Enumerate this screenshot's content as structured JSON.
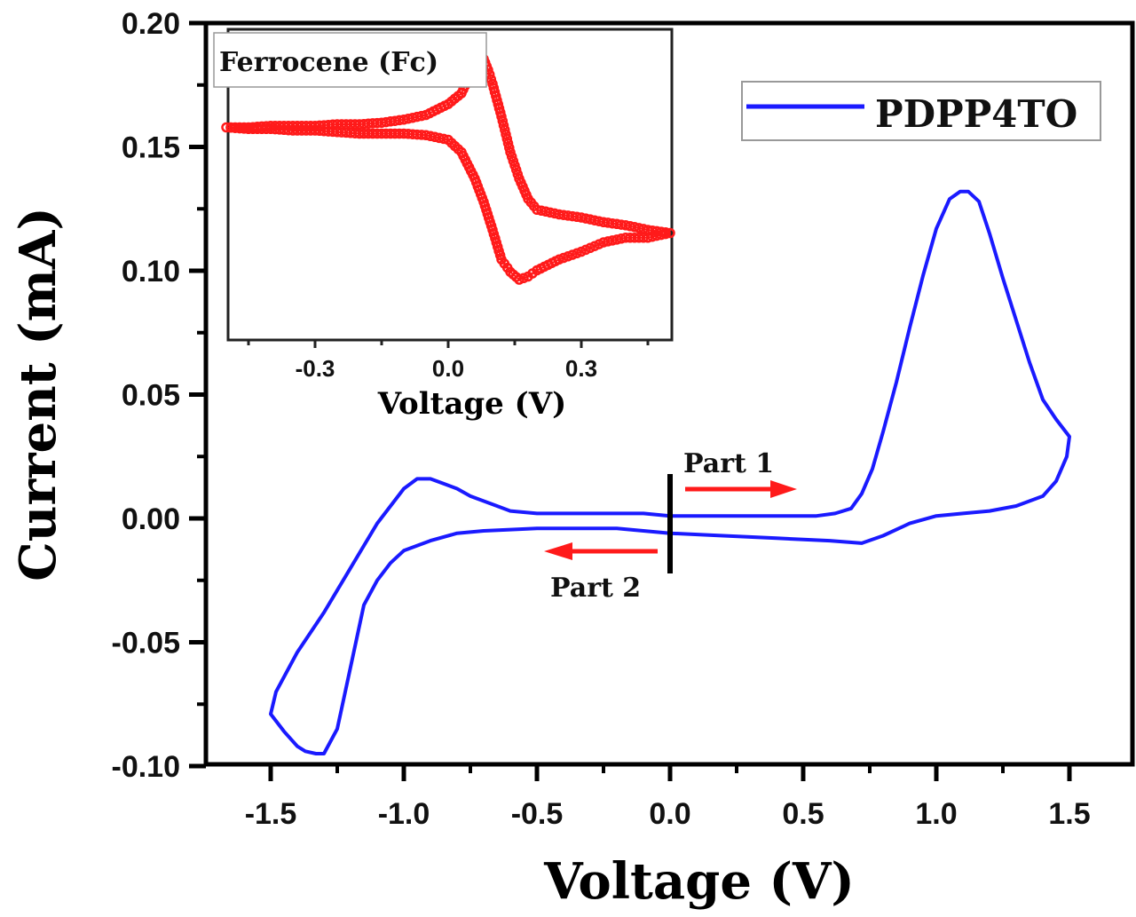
{
  "chart_data": [
    {
      "type": "line",
      "title": "",
      "xlabel": "Voltage (V)",
      "ylabel": "Current (mA)",
      "xlim": [
        -1.75,
        1.75
      ],
      "ylim": [
        -0.1,
        0.2
      ],
      "xticks": [
        -1.5,
        -1.0,
        -0.5,
        0.0,
        0.5,
        1.0,
        1.5
      ],
      "xtick_labels": [
        "-1.5",
        "-1.0",
        "-0.5",
        "0.0",
        "0.5",
        "1.0",
        "1.5"
      ],
      "yticks": [
        -0.1,
        -0.05,
        0.0,
        0.05,
        0.1,
        0.15,
        0.2
      ],
      "ytick_labels": [
        "-0.10",
        "-0.05",
        "0.00",
        "0.05",
        "0.10",
        "0.15",
        "0.20"
      ],
      "grid": false,
      "legend": {
        "position": "top-right",
        "entries": [
          "PDPP4TO"
        ]
      },
      "annotations": {
        "part1": "Part 1",
        "part2": "Part 2"
      },
      "series": [
        {
          "name": "PDPP4TO",
          "color": "#1a1aff",
          "x": [
            0.0,
            0.2,
            0.4,
            0.55,
            0.62,
            0.68,
            0.72,
            0.76,
            0.8,
            0.85,
            0.9,
            0.95,
            1.0,
            1.05,
            1.09,
            1.12,
            1.16,
            1.2,
            1.25,
            1.3,
            1.35,
            1.4,
            1.45,
            1.5,
            1.49,
            1.45,
            1.4,
            1.3,
            1.2,
            1.1,
            1.0,
            0.9,
            0.8,
            0.72,
            0.6,
            0.4,
            0.2,
            0.0,
            -0.2,
            -0.5,
            -0.7,
            -0.8,
            -0.9,
            -1.0,
            -1.05,
            -1.1,
            -1.15,
            -1.2,
            -1.25,
            -1.3,
            -1.33,
            -1.37,
            -1.4,
            -1.45,
            -1.5,
            -1.48,
            -1.4,
            -1.3,
            -1.2,
            -1.1,
            -1.0,
            -0.95,
            -0.9,
            -0.85,
            -0.8,
            -0.75,
            -0.65,
            -0.6,
            -0.5,
            -0.3,
            -0.1,
            0.0
          ],
          "y": [
            0.001,
            0.001,
            0.001,
            0.001,
            0.002,
            0.004,
            0.01,
            0.02,
            0.035,
            0.055,
            0.077,
            0.098,
            0.117,
            0.129,
            0.132,
            0.132,
            0.128,
            0.115,
            0.097,
            0.08,
            0.063,
            0.048,
            0.04,
            0.033,
            0.025,
            0.015,
            0.009,
            0.005,
            0.003,
            0.002,
            0.001,
            -0.002,
            -0.007,
            -0.01,
            -0.009,
            -0.008,
            -0.007,
            -0.006,
            -0.004,
            -0.004,
            -0.005,
            -0.006,
            -0.009,
            -0.013,
            -0.018,
            -0.025,
            -0.035,
            -0.06,
            -0.085,
            -0.095,
            -0.095,
            -0.094,
            -0.092,
            -0.086,
            -0.079,
            -0.07,
            -0.054,
            -0.038,
            -0.02,
            -0.002,
            0.012,
            0.016,
            0.016,
            0.014,
            0.012,
            0.009,
            0.005,
            0.003,
            0.002,
            0.002,
            0.002,
            0.001
          ]
        }
      ]
    },
    {
      "type": "scatter",
      "title": "",
      "xlabel": "Voltage (V)",
      "ylabel": "",
      "xlim": [
        -0.5,
        0.5
      ],
      "ylim": [
        -1.0,
        1.0
      ],
      "xticks": [
        -0.3,
        0.0,
        0.3
      ],
      "xtick_labels": [
        "-0.3",
        "0.0",
        "0.3"
      ],
      "grid": false,
      "legend": {
        "position": "top-left",
        "entries": [
          "Ferrocene (Fc)"
        ]
      },
      "series": [
        {
          "name": "Ferrocene (Fc)",
          "color": "#ff1a1a",
          "x": [
            -0.5,
            -0.45,
            -0.4,
            -0.35,
            -0.3,
            -0.25,
            -0.2,
            -0.15,
            -0.1,
            -0.05,
            0.0,
            0.03,
            0.06,
            0.08,
            0.1,
            0.12,
            0.14,
            0.16,
            0.18,
            0.2,
            0.25,
            0.3,
            0.35,
            0.4,
            0.45,
            0.5,
            0.45,
            0.4,
            0.35,
            0.3,
            0.25,
            0.2,
            0.18,
            0.16,
            0.14,
            0.12,
            0.1,
            0.09,
            0.08,
            0.07,
            0.05,
            0.03,
            0.0,
            -0.05,
            -0.1,
            -0.15,
            -0.2,
            -0.25,
            -0.3,
            -0.35,
            -0.4,
            -0.45,
            -0.5
          ],
          "y": [
            0.38,
            0.37,
            0.37,
            0.36,
            0.36,
            0.35,
            0.34,
            0.34,
            0.34,
            0.33,
            0.3,
            0.22,
            0.05,
            -0.1,
            -0.28,
            -0.47,
            -0.55,
            -0.6,
            -0.58,
            -0.54,
            -0.47,
            -0.42,
            -0.36,
            -0.33,
            -0.33,
            -0.3,
            -0.28,
            -0.25,
            -0.23,
            -0.2,
            -0.18,
            -0.15,
            -0.08,
            0.05,
            0.22,
            0.45,
            0.66,
            0.75,
            0.82,
            0.88,
            0.72,
            0.6,
            0.53,
            0.46,
            0.43,
            0.41,
            0.4,
            0.4,
            0.39,
            0.39,
            0.39,
            0.38,
            0.38
          ]
        }
      ]
    }
  ]
}
